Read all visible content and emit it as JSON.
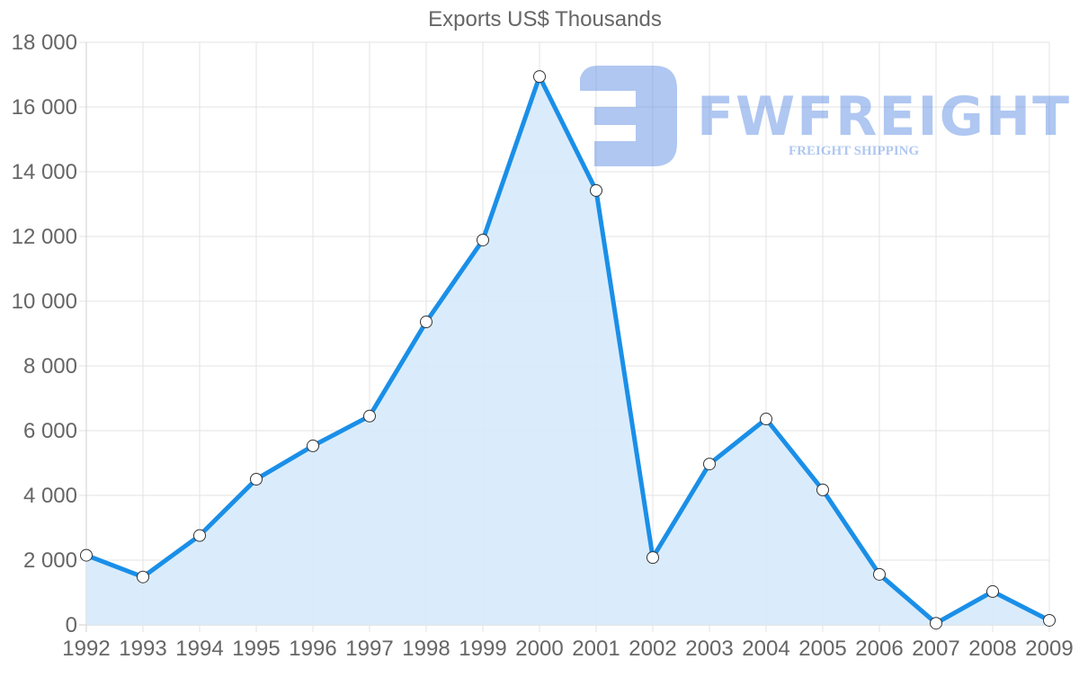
{
  "chart_data": {
    "type": "area",
    "title": "Exports US$ Thousands",
    "xlabel": "",
    "ylabel": "",
    "categories": [
      "1992",
      "1993",
      "1994",
      "1995",
      "1996",
      "1997",
      "1998",
      "1999",
      "2000",
      "2001",
      "2002",
      "2003",
      "2004",
      "2005",
      "2006",
      "2007",
      "2008",
      "2009"
    ],
    "series": [
      {
        "name": "Exports US$ Thousands",
        "values": [
          2150,
          1480,
          2760,
          4500,
          5530,
          6450,
          9360,
          11890,
          16940,
          13420,
          2080,
          4970,
          6360,
          4170,
          1560,
          50,
          1030,
          140
        ]
      }
    ],
    "ylim": [
      0,
      18000
    ],
    "yticks": [
      "0",
      "2 000",
      "4 000",
      "6 000",
      "8 000",
      "10 000",
      "12 000",
      "14 000",
      "16 000",
      "18 000"
    ],
    "grid": true,
    "legend": "none",
    "colors": {
      "line": "#1a8fe8",
      "fill": "#d6eafb",
      "grid": "#e3e3e3",
      "marker_fill": "#ffffff",
      "marker_stroke": "#333333"
    }
  },
  "watermark": {
    "brand": "FWFREIGHT",
    "tagline": "FREIGHT SHIPPING",
    "color": "#6f9be6"
  }
}
